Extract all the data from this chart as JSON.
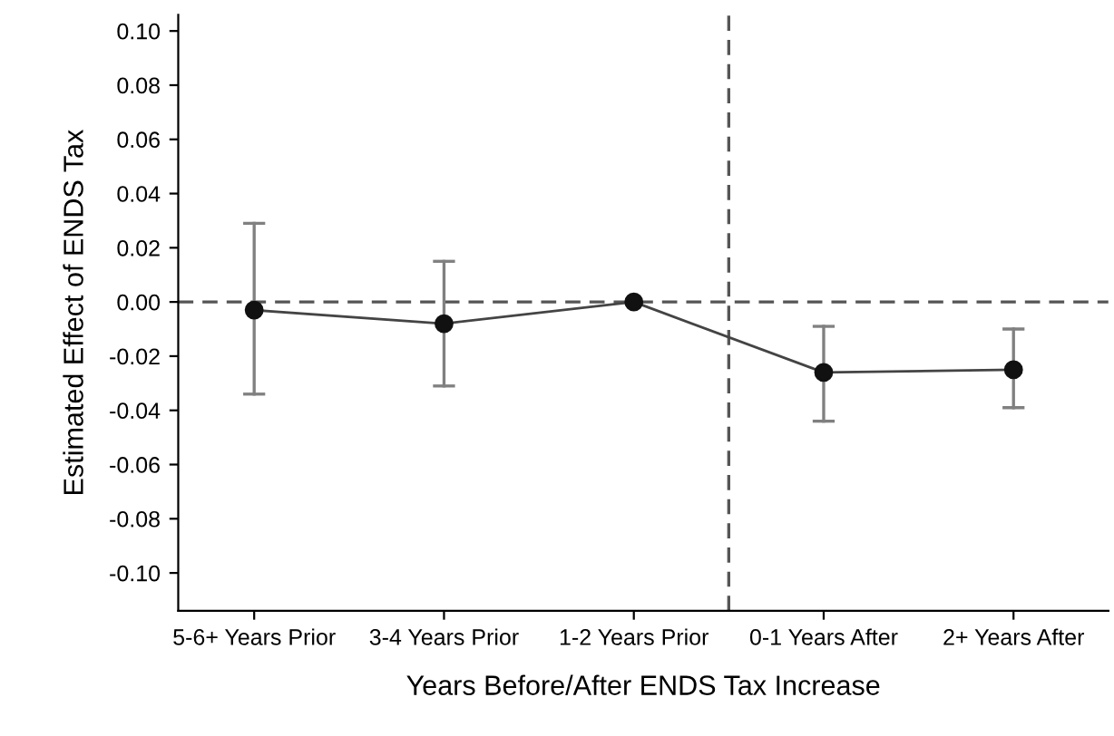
{
  "chart_data": {
    "type": "line",
    "xlabel": "Years Before/After ENDS Tax Increase",
    "ylabel": "Estimated Effect of ENDS Tax",
    "categories": [
      "5-6+ Years Prior",
      "3-4 Years Prior",
      "1-2 Years Prior",
      "0-1 Years After",
      "2+ Years After"
    ],
    "ylim": [
      -0.114,
      0.106
    ],
    "yticks": [
      {
        "value": -0.1,
        "label": "-0.10"
      },
      {
        "value": -0.08,
        "label": "-0.08"
      },
      {
        "value": -0.06,
        "label": "-0.06"
      },
      {
        "value": -0.04,
        "label": "-0.04"
      },
      {
        "value": -0.02,
        "label": "-0.02"
      },
      {
        "value": 0,
        "label": "0.00"
      },
      {
        "value": 0.02,
        "label": "0.02"
      },
      {
        "value": 0.04,
        "label": "0.04"
      },
      {
        "value": 0.06,
        "label": "0.06"
      },
      {
        "value": 0.08,
        "label": "0.08"
      },
      {
        "value": 0.1,
        "label": "0.10"
      }
    ],
    "series": [
      {
        "color": "#111111",
        "values": [
          -0.003,
          -0.008,
          0.0,
          -0.026,
          -0.025
        ],
        "errors": [
          [
            -0.034,
            0.029
          ],
          [
            -0.031,
            0.015
          ],
          null,
          [
            -0.044,
            -0.009
          ],
          [
            -0.039,
            -0.01
          ]
        ]
      }
    ],
    "marker": "circle",
    "line_style": "solid",
    "grid": false,
    "ref_lines": [
      {
        "axis": "y",
        "value": 0,
        "color": "#555555",
        "line_style": "dashed"
      }
    ]
  }
}
